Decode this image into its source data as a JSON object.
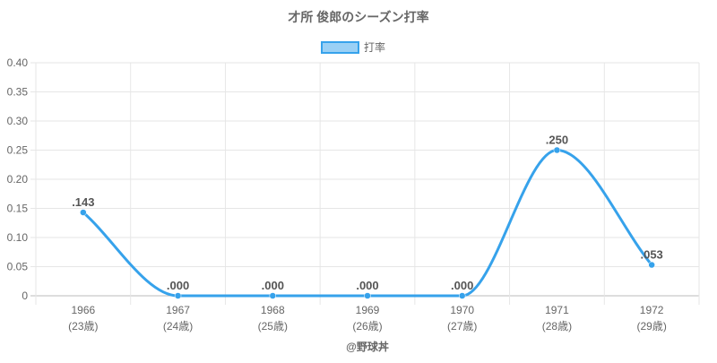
{
  "chart_data": {
    "type": "line",
    "title": "才所 俊郎のシーズン打率",
    "categories": [
      "1966",
      "1967",
      "1968",
      "1969",
      "1970",
      "1971",
      "1972"
    ],
    "sublabels": [
      "(23歳)",
      "(24歳)",
      "(25歳)",
      "(26歳)",
      "(27歳)",
      "(28歳)",
      "(29歳)"
    ],
    "series": [
      {
        "name": "打率",
        "values": [
          0.143,
          0.0,
          0.0,
          0.0,
          0.0,
          0.25,
          0.053
        ],
        "labels": [
          ".143",
          ".000",
          ".000",
          ".000",
          ".000",
          ".250",
          ".053"
        ],
        "color": "#36a2eb",
        "fill": "#9ad0f5"
      }
    ],
    "ylim": [
      0,
      0.4
    ],
    "yticks": [
      "0",
      "0.05",
      "0.10",
      "0.15",
      "0.20",
      "0.25",
      "0.30",
      "0.35",
      "0.40"
    ],
    "grid": true,
    "legend_position": "top"
  },
  "credit": "@野球丼"
}
